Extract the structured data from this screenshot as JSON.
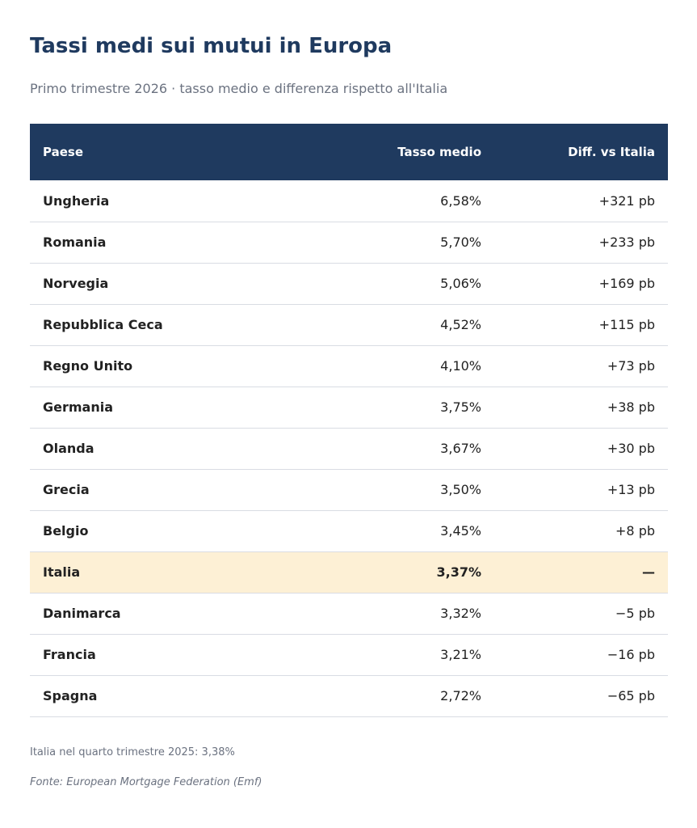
{
  "chart_data": {
    "type": "table",
    "title": "Tassi medi sui mutui in Europa",
    "subtitle": "Primo trimestre 2026 · tasso medio e differenza rispetto all'Italia",
    "columns": [
      "Paese",
      "Tasso medio",
      "Diff. vs Italia"
    ],
    "rows": [
      {
        "country": "Ungheria",
        "rate": "6,58%",
        "diff": "+321 pb"
      },
      {
        "country": "Romania",
        "rate": "5,70%",
        "diff": "+233 pb"
      },
      {
        "country": "Norvegia",
        "rate": "5,06%",
        "diff": "+169 pb"
      },
      {
        "country": "Repubblica Ceca",
        "rate": "4,52%",
        "diff": "+115 pb"
      },
      {
        "country": "Regno Unito",
        "rate": "4,10%",
        "diff": "+73 pb"
      },
      {
        "country": "Germania",
        "rate": "3,75%",
        "diff": "+38 pb"
      },
      {
        "country": "Olanda",
        "rate": "3,67%",
        "diff": "+30 pb"
      },
      {
        "country": "Grecia",
        "rate": "3,50%",
        "diff": "+13 pb"
      },
      {
        "country": "Belgio",
        "rate": "3,45%",
        "diff": "+8 pb"
      },
      {
        "country": "Italia",
        "rate": "3,37%",
        "diff": "—",
        "highlight": true
      },
      {
        "country": "Danimarca",
        "rate": "3,32%",
        "diff": "−5 pb"
      },
      {
        "country": "Francia",
        "rate": "3,21%",
        "diff": "−16 pb"
      },
      {
        "country": "Spagna",
        "rate": "2,72%",
        "diff": "−65 pb"
      }
    ],
    "note": "Italia nel quarto trimestre 2025: 3,38%",
    "source": "Fonte: European Mortgage Federation (Emf)"
  },
  "colors": {
    "header_background": "#1f3a5f",
    "highlight_row": "#fdf0d5",
    "title": "#1f3a5f"
  }
}
